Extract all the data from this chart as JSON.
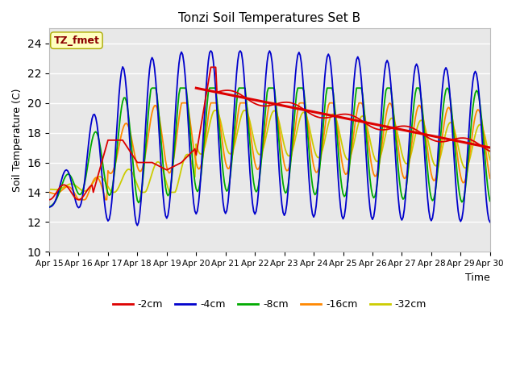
{
  "title": "Tonzi Soil Temperatures Set B",
  "xlabel": "Time",
  "ylabel": "Soil Temperature (C)",
  "annotation": "TZ_fmet",
  "annotation_color": "#8B0000",
  "annotation_bg": "#FFFFC0",
  "annotation_border": "#AAAA00",
  "ylim": [
    10,
    25
  ],
  "xlim": [
    0,
    15
  ],
  "yticks": [
    10,
    12,
    14,
    16,
    18,
    20,
    22,
    24
  ],
  "x_labels": [
    "Apr 15",
    "Apr 16",
    "Apr 17",
    "Apr 18",
    "Apr 19",
    "Apr 20",
    "Apr 21",
    "Apr 22",
    "Apr 23",
    "Apr 24",
    "Apr 25",
    "Apr 26",
    "Apr 27",
    "Apr 28",
    "Apr 29",
    "Apr 30"
  ],
  "colors": {
    "c2": "#DD0000",
    "c4": "#0000CC",
    "c8": "#00AA00",
    "c16": "#FF8800",
    "c32": "#CCCC00"
  },
  "trend_x": [
    5.0,
    15.0
  ],
  "trend_y": [
    21.0,
    17.0
  ],
  "trend_color": "#DD0000",
  "bg_color": "#E8E8E8",
  "grid_color": "#FFFFFF",
  "lw": 1.3,
  "trend_lw": 2.2
}
